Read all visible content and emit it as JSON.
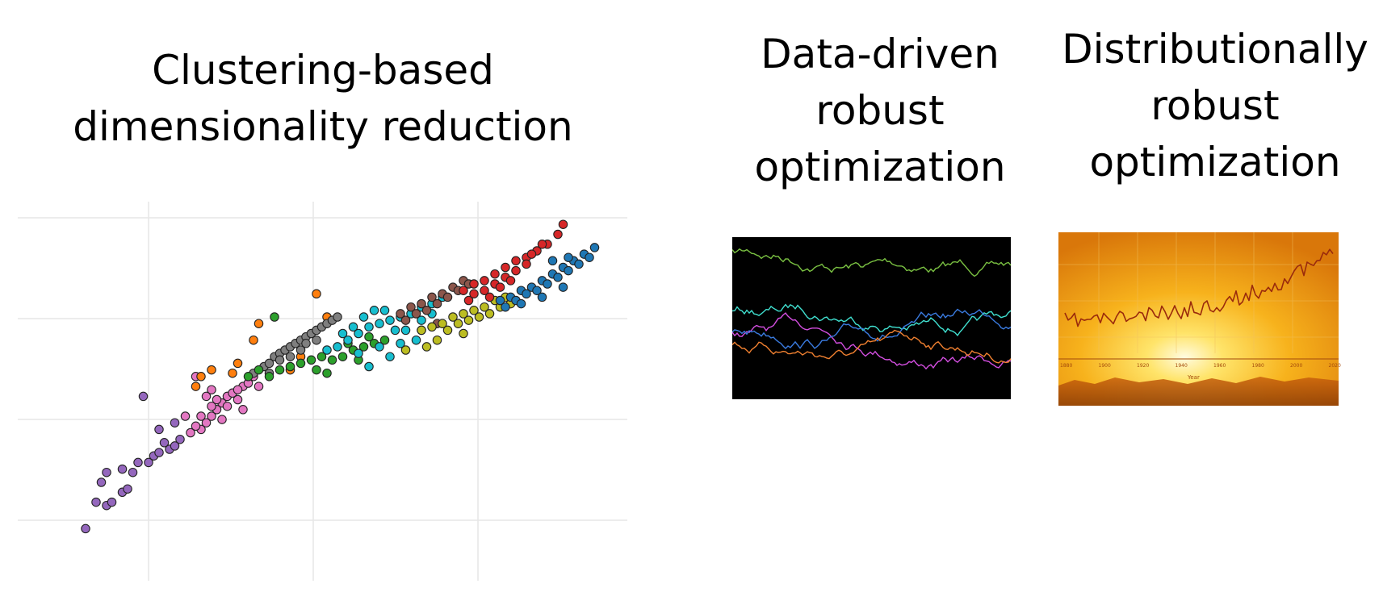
{
  "titles": {
    "left": [
      "Clustering-based",
      "dimensionality reduction"
    ],
    "middle": [
      "Data-driven",
      "robust",
      "optimization"
    ],
    "right": [
      "Distributionally",
      "robust",
      "optimization"
    ]
  },
  "right_panel": {
    "axis_label": "Year",
    "year_ticks": [
      "1880",
      "1900",
      "1920",
      "1940",
      "1960",
      "1980",
      "2000",
      "2020"
    ]
  },
  "chart_data": [
    {
      "type": "scatter",
      "grid": true,
      "point_edge_color": "#222222",
      "series": [
        {
          "color": "#9467bd",
          "points": [
            [
              0.06,
              0.06
            ],
            [
              0.1,
              0.13
            ],
            [
              0.11,
              0.14
            ],
            [
              0.13,
              0.17
            ],
            [
              0.13,
              0.24
            ],
            [
              0.1,
              0.23
            ],
            [
              0.15,
              0.23
            ],
            [
              0.16,
              0.26
            ],
            [
              0.18,
              0.26
            ],
            [
              0.19,
              0.28
            ],
            [
              0.2,
              0.29
            ],
            [
              0.22,
              0.3
            ],
            [
              0.23,
              0.31
            ],
            [
              0.24,
              0.33
            ],
            [
              0.2,
              0.36
            ],
            [
              0.23,
              0.38
            ],
            [
              0.17,
              0.46
            ],
            [
              0.09,
              0.2
            ],
            [
              0.14,
              0.18
            ],
            [
              0.08,
              0.14
            ],
            [
              0.21,
              0.32
            ]
          ]
        },
        {
          "color": "#e377c2",
          "points": [
            [
              0.26,
              0.35
            ],
            [
              0.28,
              0.36
            ],
            [
              0.29,
              0.38
            ],
            [
              0.3,
              0.4
            ],
            [
              0.31,
              0.42
            ],
            [
              0.32,
              0.44
            ],
            [
              0.33,
              0.46
            ],
            [
              0.34,
              0.47
            ],
            [
              0.36,
              0.49
            ],
            [
              0.37,
              0.5
            ],
            [
              0.38,
              0.52
            ],
            [
              0.27,
              0.37
            ],
            [
              0.28,
              0.4
            ],
            [
              0.3,
              0.43
            ],
            [
              0.31,
              0.45
            ],
            [
              0.33,
              0.43
            ],
            [
              0.35,
              0.45
            ],
            [
              0.35,
              0.48
            ],
            [
              0.29,
              0.46
            ],
            [
              0.27,
              0.52
            ],
            [
              0.39,
              0.49
            ],
            [
              0.36,
              0.42
            ],
            [
              0.32,
              0.39
            ],
            [
              0.25,
              0.4
            ],
            [
              0.3,
              0.48
            ]
          ]
        },
        {
          "color": "#ff7f0e",
          "points": [
            [
              0.28,
              0.52
            ],
            [
              0.3,
              0.54
            ],
            [
              0.27,
              0.49
            ],
            [
              0.35,
              0.56
            ],
            [
              0.38,
              0.63
            ],
            [
              0.5,
              0.77
            ],
            [
              0.52,
              0.7
            ],
            [
              0.39,
              0.68
            ],
            [
              0.47,
              0.58
            ],
            [
              0.45,
              0.54
            ],
            [
              0.34,
              0.53
            ]
          ]
        },
        {
          "color": "#7f7f7f",
          "points": [
            [
              0.38,
              0.53
            ],
            [
              0.4,
              0.55
            ],
            [
              0.41,
              0.56
            ],
            [
              0.42,
              0.58
            ],
            [
              0.43,
              0.59
            ],
            [
              0.44,
              0.6
            ],
            [
              0.45,
              0.61
            ],
            [
              0.46,
              0.62
            ],
            [
              0.47,
              0.63
            ],
            [
              0.48,
              0.64
            ],
            [
              0.49,
              0.65
            ],
            [
              0.5,
              0.66
            ],
            [
              0.51,
              0.67
            ],
            [
              0.52,
              0.68
            ],
            [
              0.53,
              0.69
            ],
            [
              0.43,
              0.57
            ],
            [
              0.45,
              0.58
            ],
            [
              0.48,
              0.62
            ],
            [
              0.5,
              0.63
            ],
            [
              0.54,
              0.7
            ],
            [
              0.41,
              0.53
            ],
            [
              0.47,
              0.6
            ]
          ]
        },
        {
          "color": "#2ca02c",
          "points": [
            [
              0.37,
              0.52
            ],
            [
              0.39,
              0.54
            ],
            [
              0.41,
              0.52
            ],
            [
              0.43,
              0.54
            ],
            [
              0.45,
              0.55
            ],
            [
              0.47,
              0.56
            ],
            [
              0.49,
              0.57
            ],
            [
              0.51,
              0.58
            ],
            [
              0.53,
              0.57
            ],
            [
              0.55,
              0.58
            ],
            [
              0.57,
              0.6
            ],
            [
              0.59,
              0.61
            ],
            [
              0.61,
              0.62
            ],
            [
              0.63,
              0.63
            ],
            [
              0.5,
              0.54
            ],
            [
              0.52,
              0.53
            ],
            [
              0.42,
              0.7
            ],
            [
              0.58,
              0.57
            ],
            [
              0.56,
              0.62
            ],
            [
              0.6,
              0.64
            ]
          ]
        },
        {
          "color": "#17becf",
          "points": [
            [
              0.52,
              0.6
            ],
            [
              0.54,
              0.61
            ],
            [
              0.56,
              0.63
            ],
            [
              0.58,
              0.65
            ],
            [
              0.6,
              0.67
            ],
            [
              0.62,
              0.68
            ],
            [
              0.64,
              0.69
            ],
            [
              0.66,
              0.7
            ],
            [
              0.68,
              0.71
            ],
            [
              0.7,
              0.73
            ],
            [
              0.72,
              0.74
            ],
            [
              0.55,
              0.65
            ],
            [
              0.57,
              0.67
            ],
            [
              0.59,
              0.7
            ],
            [
              0.61,
              0.72
            ],
            [
              0.63,
              0.72
            ],
            [
              0.65,
              0.66
            ],
            [
              0.67,
              0.66
            ],
            [
              0.7,
              0.69
            ],
            [
              0.72,
              0.71
            ],
            [
              0.58,
              0.59
            ],
            [
              0.62,
              0.61
            ],
            [
              0.66,
              0.62
            ],
            [
              0.69,
              0.63
            ],
            [
              0.74,
              0.76
            ],
            [
              0.6,
              0.55
            ],
            [
              0.64,
              0.58
            ]
          ]
        },
        {
          "color": "#8c564b",
          "points": [
            [
              0.66,
              0.71
            ],
            [
              0.68,
              0.73
            ],
            [
              0.7,
              0.74
            ],
            [
              0.72,
              0.76
            ],
            [
              0.74,
              0.77
            ],
            [
              0.76,
              0.79
            ],
            [
              0.78,
              0.81
            ],
            [
              0.67,
              0.69
            ],
            [
              0.69,
              0.71
            ],
            [
              0.71,
              0.72
            ],
            [
              0.73,
              0.74
            ],
            [
              0.75,
              0.76
            ],
            [
              0.77,
              0.78
            ],
            [
              0.79,
              0.8
            ],
            [
              0.7,
              0.66
            ],
            [
              0.73,
              0.68
            ]
          ]
        },
        {
          "color": "#bcbd22",
          "points": [
            [
              0.7,
              0.66
            ],
            [
              0.72,
              0.67
            ],
            [
              0.74,
              0.68
            ],
            [
              0.76,
              0.7
            ],
            [
              0.78,
              0.71
            ],
            [
              0.8,
              0.72
            ],
            [
              0.82,
              0.73
            ],
            [
              0.84,
              0.75
            ],
            [
              0.86,
              0.76
            ],
            [
              0.75,
              0.66
            ],
            [
              0.77,
              0.68
            ],
            [
              0.79,
              0.69
            ],
            [
              0.81,
              0.7
            ],
            [
              0.83,
              0.71
            ],
            [
              0.85,
              0.73
            ],
            [
              0.73,
              0.63
            ],
            [
              0.71,
              0.61
            ],
            [
              0.78,
              0.65
            ],
            [
              0.67,
              0.6
            ],
            [
              0.87,
              0.74
            ]
          ]
        },
        {
          "color": "#d62728",
          "points": [
            [
              0.78,
              0.78
            ],
            [
              0.8,
              0.8
            ],
            [
              0.82,
              0.81
            ],
            [
              0.84,
              0.83
            ],
            [
              0.86,
              0.85
            ],
            [
              0.88,
              0.87
            ],
            [
              0.9,
              0.88
            ],
            [
              0.92,
              0.9
            ],
            [
              0.94,
              0.92
            ],
            [
              0.96,
              0.95
            ],
            [
              0.8,
              0.77
            ],
            [
              0.82,
              0.78
            ],
            [
              0.84,
              0.8
            ],
            [
              0.86,
              0.82
            ],
            [
              0.88,
              0.84
            ],
            [
              0.9,
              0.86
            ],
            [
              0.85,
              0.79
            ],
            [
              0.87,
              0.81
            ],
            [
              0.79,
              0.75
            ],
            [
              0.83,
              0.76
            ],
            [
              0.97,
              0.98
            ],
            [
              0.93,
              0.92
            ],
            [
              0.91,
              0.89
            ]
          ]
        },
        {
          "color": "#1f77b4",
          "points": [
            [
              0.85,
              0.75
            ],
            [
              0.87,
              0.76
            ],
            [
              0.89,
              0.78
            ],
            [
              0.91,
              0.79
            ],
            [
              0.93,
              0.81
            ],
            [
              0.95,
              0.83
            ],
            [
              0.97,
              0.85
            ],
            [
              0.99,
              0.87
            ],
            [
              1.01,
              0.89
            ],
            [
              1.03,
              0.91
            ],
            [
              0.88,
              0.75
            ],
            [
              0.9,
              0.77
            ],
            [
              0.92,
              0.78
            ],
            [
              0.94,
              0.8
            ],
            [
              0.96,
              0.82
            ],
            [
              0.98,
              0.84
            ],
            [
              1.0,
              0.86
            ],
            [
              1.02,
              0.88
            ],
            [
              0.86,
              0.73
            ],
            [
              0.89,
              0.74
            ],
            [
              0.93,
              0.76
            ],
            [
              0.97,
              0.79
            ],
            [
              0.98,
              0.88
            ],
            [
              0.95,
              0.87
            ]
          ]
        }
      ]
    }
  ]
}
